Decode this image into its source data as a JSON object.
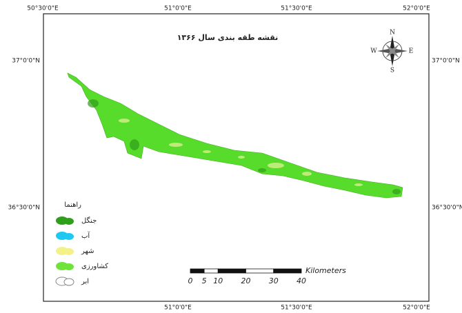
{
  "map": {
    "title": "نقشه طقه بندی سال ۱۳۶۶",
    "graticule": {
      "top": [
        "50°30'0\"E",
        "51°0'0\"E",
        "51°30'0\"E",
        "52°0'0\"E"
      ],
      "bottom": [
        "51°0'0\"E",
        "51°30'0\"E",
        "52°0'0\"E"
      ],
      "left": [
        "37°0'0\"N",
        "36°30'0\"N"
      ],
      "right": [
        "37°0'0\"N",
        "36°30'0\"N"
      ]
    },
    "north_arrow": {
      "n": "N",
      "s": "S",
      "e": "E",
      "w": "W"
    },
    "legend": {
      "title": "راهنما",
      "items": [
        "جنگل",
        "آب",
        "شهر",
        "کشاورزی",
        "ابر"
      ]
    },
    "scale_bar": {
      "unit": "Kilometers",
      "ticks": [
        0,
        5,
        10,
        20,
        30,
        40
      ]
    }
  }
}
